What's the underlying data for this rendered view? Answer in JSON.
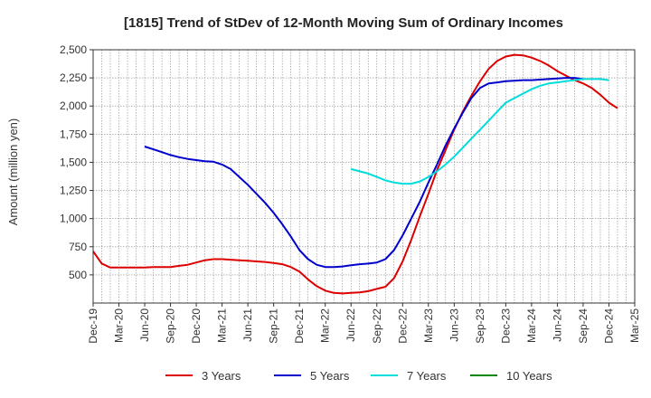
{
  "chart_data": {
    "type": "line",
    "title": "[1815]  Trend of StDev of 12-Month Moving Sum of Ordinary Incomes",
    "xlabel": "",
    "ylabel": "Amount (million yen)",
    "ylim": [
      250,
      2500
    ],
    "y_ticks": [
      500,
      750,
      1000,
      1250,
      1500,
      1750,
      2000,
      2250,
      2500
    ],
    "y_tick_labels": [
      "500",
      "750",
      "1,000",
      "1,250",
      "1,500",
      "1,750",
      "2,000",
      "2,250",
      "2,500"
    ],
    "x_tick_labels": [
      "Dec-19",
      "Mar-20",
      "Jun-20",
      "Sep-20",
      "Dec-20",
      "Mar-21",
      "Jun-21",
      "Sep-21",
      "Dec-21",
      "Mar-22",
      "Jun-22",
      "Sep-22",
      "Dec-22",
      "Mar-23",
      "Jun-23",
      "Sep-23",
      "Dec-23",
      "Mar-24",
      "Jun-24",
      "Sep-24",
      "Dec-24",
      "Mar-25"
    ],
    "grid": true,
    "legend_position": "bottom",
    "x_start": "Dec-19",
    "series": [
      {
        "name": "3 Years",
        "color": "#dd0000",
        "start_index": 0,
        "values": [
          710,
          600,
          565,
          565,
          565,
          565,
          565,
          570,
          570,
          570,
          580,
          590,
          610,
          630,
          640,
          640,
          635,
          630,
          625,
          620,
          615,
          605,
          595,
          570,
          530,
          460,
          400,
          360,
          340,
          335,
          340,
          345,
          355,
          375,
          395,
          470,
          620,
          810,
          1020,
          1220,
          1430,
          1610,
          1790,
          1950,
          2090,
          2220,
          2330,
          2400,
          2440,
          2455,
          2450,
          2430,
          2400,
          2360,
          2310,
          2270,
          2230,
          2200,
          2160,
          2100,
          2030,
          1980
        ]
      },
      {
        "name": "5 Years",
        "color": "#0000cc",
        "start_index": 6,
        "values": [
          1640,
          1615,
          1590,
          1565,
          1545,
          1530,
          1520,
          1510,
          1505,
          1480,
          1440,
          1370,
          1300,
          1220,
          1140,
          1050,
          950,
          840,
          720,
          640,
          590,
          570,
          570,
          575,
          585,
          595,
          600,
          610,
          640,
          720,
          850,
          1000,
          1150,
          1320,
          1480,
          1650,
          1800,
          1940,
          2070,
          2160,
          2200,
          2210,
          2220,
          2225,
          2230,
          2230,
          2235,
          2240,
          2245,
          2250,
          2250,
          2240
        ]
      },
      {
        "name": "7 Years",
        "color": "#00dddd",
        "start_index": 30,
        "values": [
          1440,
          1420,
          1400,
          1370,
          1340,
          1320,
          1310,
          1310,
          1330,
          1370,
          1420,
          1480,
          1550,
          1630,
          1710,
          1790,
          1870,
          1950,
          2030,
          2070,
          2110,
          2150,
          2180,
          2200,
          2210,
          2220,
          2230,
          2240,
          2240,
          2240,
          2230
        ]
      },
      {
        "name": "10 Years",
        "color": "#008800",
        "start_index": 0,
        "values": []
      }
    ]
  }
}
